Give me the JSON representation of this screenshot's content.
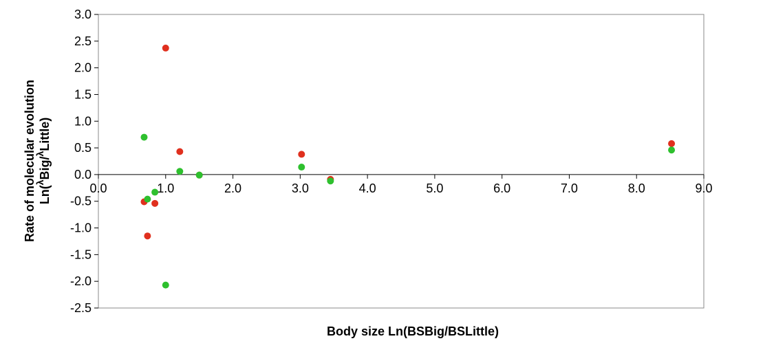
{
  "chart_data": {
    "type": "scatter",
    "xlabel": "Body size Ln(BSBig/BSLittle)",
    "ylabel_line1": "Rate of molecular evolution",
    "ylabel_line2": {
      "prefix": "Ln(",
      "sup1": "λ",
      "mid": "Big/",
      "sup2": "λ",
      "suffix": "Little)"
    },
    "xlim": [
      0,
      9
    ],
    "ylim": [
      -2.5,
      3
    ],
    "x_ticks": [
      "0.0",
      "1.0",
      "2.0",
      "3.0",
      "4.0",
      "5.0",
      "6.0",
      "7.0",
      "8.0",
      "9.0"
    ],
    "y_ticks": [
      "3.0",
      "2.5",
      "2.0",
      "1.5",
      "1.0",
      "0.5",
      "0.0",
      "-0.5",
      "-1.0",
      "-1.5",
      "-2.0",
      "-2.5"
    ],
    "grid": false,
    "series": [
      {
        "color": "#e0301e",
        "points": [
          {
            "x": 0.68,
            "y": -0.51
          },
          {
            "x": 0.73,
            "y": -1.15
          },
          {
            "x": 0.84,
            "y": -0.54
          },
          {
            "x": 1.0,
            "y": 2.37
          },
          {
            "x": 1.21,
            "y": 0.43
          },
          {
            "x": 1.5,
            "y": -0.01
          },
          {
            "x": 3.02,
            "y": 0.38
          },
          {
            "x": 3.45,
            "y": -0.09
          },
          {
            "x": 8.52,
            "y": 0.58
          }
        ]
      },
      {
        "color": "#2ec02e",
        "points": [
          {
            "x": 0.68,
            "y": 0.7
          },
          {
            "x": 0.73,
            "y": -0.46
          },
          {
            "x": 0.84,
            "y": -0.33
          },
          {
            "x": 1.0,
            "y": -2.07
          },
          {
            "x": 1.21,
            "y": 0.06
          },
          {
            "x": 1.5,
            "y": -0.01
          },
          {
            "x": 3.02,
            "y": 0.14
          },
          {
            "x": 3.45,
            "y": -0.12
          },
          {
            "x": 8.52,
            "y": 0.46
          }
        ]
      }
    ]
  }
}
